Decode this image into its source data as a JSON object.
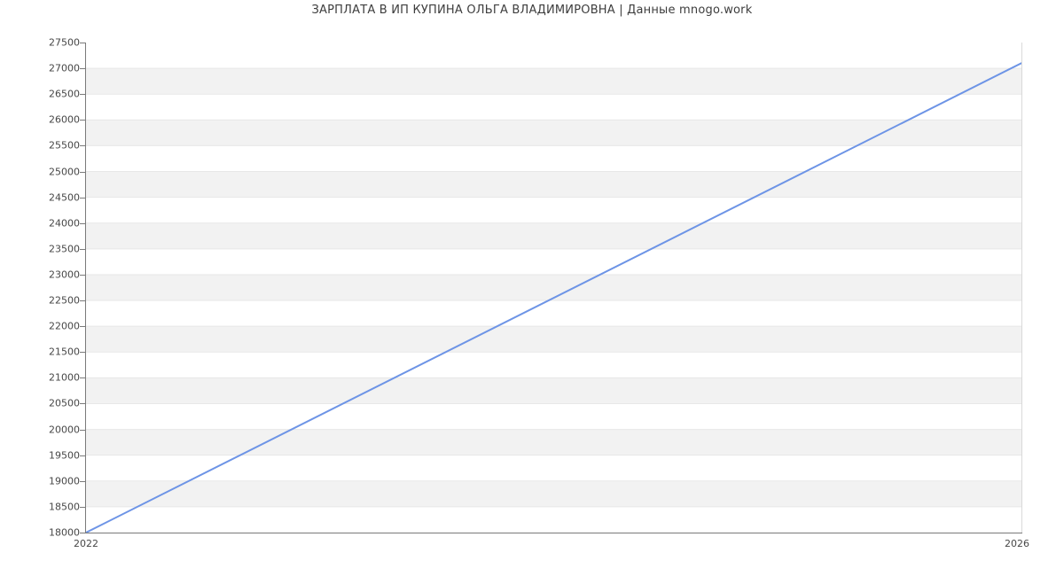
{
  "title": "ЗАРПЛАТА В ИП КУПИНА ОЛЬГА ВЛАДИМИРОВНА | Данные mnogo.work",
  "chart_data": {
    "type": "line",
    "title": "ЗАРПЛАТА В ИП КУПИНА ОЛЬГА ВЛАДИМИРОВНА | Данные mnogo.work",
    "x": [
      2022,
      2026
    ],
    "y": [
      18000,
      27100
    ],
    "xlabel": "",
    "ylabel": "",
    "xlim": [
      2022,
      2026
    ],
    "ylim": [
      18000,
      27500
    ],
    "yticks": [
      18000,
      18500,
      19000,
      19500,
      20000,
      20500,
      21000,
      21500,
      22000,
      22500,
      23000,
      23500,
      24000,
      24500,
      25000,
      25500,
      26000,
      26500,
      27000,
      27500
    ],
    "xticks": [
      {
        "value": 2022,
        "label": "2022"
      },
      {
        "value": 2026,
        "label": "2026"
      }
    ],
    "grid": "horizontal-bands",
    "legend": "none",
    "colors": {
      "line": "#6d94e6",
      "band": "#f2f2f2",
      "gridline": "#e7e7e7",
      "axis": "#7a7a7a",
      "plot_right_border": "#d9d9d9",
      "text": "#474747",
      "title_text": "#3d3d3d",
      "background": "#ffffff"
    }
  }
}
